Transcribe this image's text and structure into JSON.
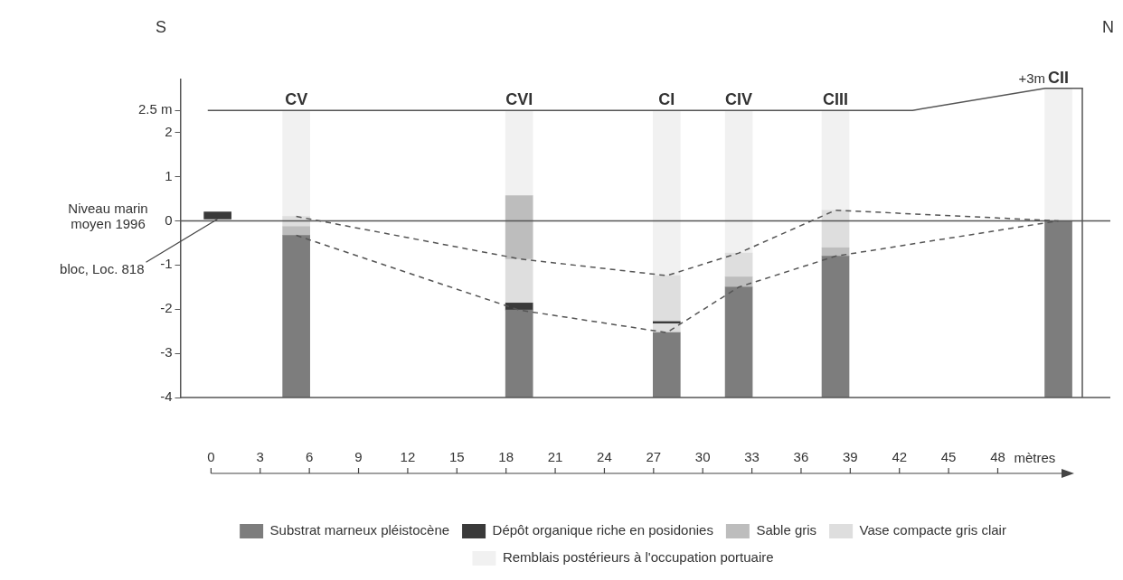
{
  "chart_data": {
    "type": "bar",
    "x": [
      0.4,
      5.2,
      18.8,
      27.8,
      32.2,
      38.1,
      51.7
    ],
    "series": [
      {
        "name": "Substrat marneux pléistocène",
        "color": "#7d7d7d",
        "base": [
          null,
          -4,
          -4,
          -4,
          -4,
          -4,
          -4
        ],
        "values": [
          null,
          3.67,
          1.98,
          1.47,
          2.5,
          3.2,
          4
        ]
      },
      {
        "color": "#dedede",
        "base": [
          null,
          null,
          null,
          -2.53,
          null,
          null,
          null
        ],
        "values": [
          null,
          null,
          null,
          0.2,
          null,
          null,
          null
        ]
      },
      {
        "name": "Dépôt organique riche en posidonies",
        "color": "#3a3a3a",
        "base": [
          0.04,
          null,
          -2.02,
          -2.33,
          null,
          null,
          null
        ],
        "values": [
          0.16,
          null,
          0.16,
          0.05,
          null,
          null,
          null
        ]
      },
      {
        "name": "Sable gris",
        "color": "#bdbdbd",
        "base": [
          null,
          -0.33,
          -0.86,
          null,
          -1.5,
          -0.8,
          null
        ],
        "values": [
          null,
          0.2,
          1.43,
          null,
          0.23,
          0.19,
          null
        ]
      },
      {
        "name": "Vase compacte gris clair",
        "color": "#dedede",
        "base": [
          null,
          -0.13,
          -1.86,
          -2.28,
          -1.27,
          -0.61,
          null
        ],
        "values": [
          null,
          0.23,
          1.0,
          1.04,
          0.54,
          0.85,
          null
        ]
      },
      {
        "name": "Remblais postérieurs à l'occupation portuaire",
        "color": "#f1f1f1",
        "base": [
          null,
          0.1,
          0.57,
          -1.24,
          -0.73,
          0.24,
          0
        ],
        "values": [
          null,
          2.4,
          1.93,
          3.74,
          3.23,
          2.26,
          3
        ]
      },
      {
        "type": "line",
        "color": "#555555",
        "line_style": "dashed",
        "x": [
          5.2,
          18.8,
          27.8,
          32.2,
          38.1,
          51.7
        ],
        "values": [
          0.1,
          -0.86,
          -1.24,
          -0.73,
          0.24,
          0
        ]
      },
      {
        "type": "line",
        "color": "#555555",
        "line_style": "dashed",
        "x": [
          5.2,
          18.8,
          27.8,
          32.2,
          38.1,
          51.7
        ],
        "values": [
          -0.33,
          -2.02,
          -2.53,
          -1.5,
          -0.8,
          0
        ]
      },
      {
        "type": "line",
        "color": "#555555",
        "line_style": "solid",
        "x": [
          -0.2,
          42.8,
          50.9,
          53.2
        ],
        "values": [
          2.5,
          2.5,
          3,
          3
        ]
      }
    ],
    "xlabel": "mètres",
    "xlim": [
      -0.2,
      53.2
    ],
    "xticks": [
      0,
      3,
      6,
      9,
      12,
      15,
      18,
      21,
      24,
      27,
      30,
      33,
      36,
      39,
      42,
      45,
      48
    ],
    "ylim": [
      -4,
      3.2
    ],
    "yticks": [
      -4,
      -3,
      -2,
      -1,
      0,
      1,
      2,
      {
        "value": 2.5,
        "label": "2.5 m"
      }
    ],
    "ref_lines": [
      {
        "axis": "y",
        "value": 0,
        "label": "Niveau marin moyen 1996",
        "color": "#555555"
      }
    ],
    "annotations": [
      "S",
      "N",
      "+3m",
      {
        "text": "bloc, Loc. 818",
        "x": 0.4,
        "y": 0.04
      },
      {
        "text": "CV",
        "x": 5.2,
        "y": 2.5
      },
      {
        "text": "CVI",
        "x": 18.8,
        "y": 2.5
      },
      {
        "text": "CI",
        "x": 27.8,
        "y": 2.5
      },
      {
        "text": "CIV",
        "x": 32.2,
        "y": 2.5
      },
      {
        "text": "CIII",
        "x": 38.1,
        "y": 2.5
      },
      {
        "text": "CII",
        "x": 51.7,
        "y": 3
      }
    ],
    "grid": false,
    "legend": "bottom",
    "marker": "none"
  }
}
